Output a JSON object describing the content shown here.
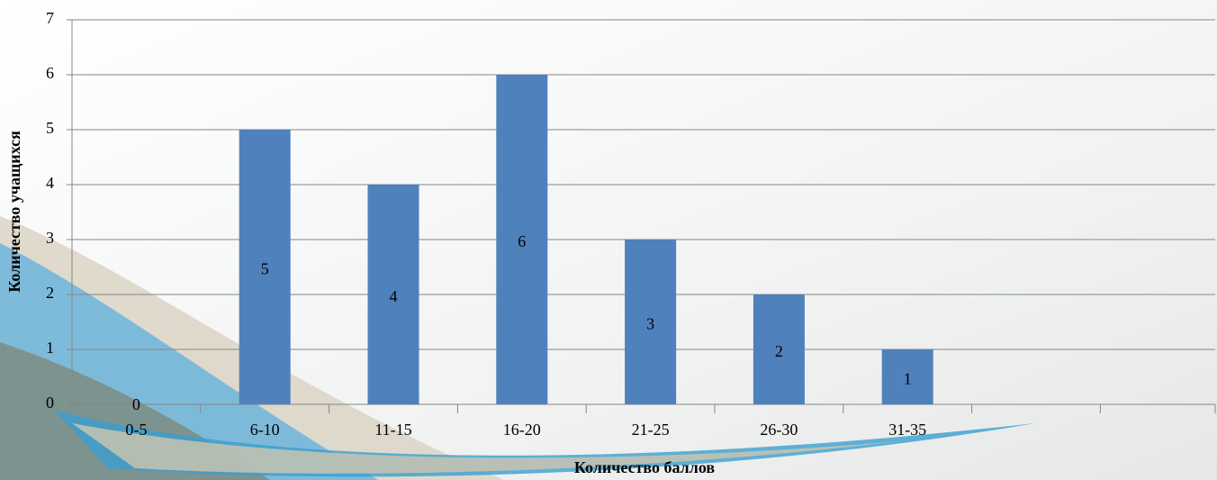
{
  "chart_data": {
    "type": "bar",
    "x_label": "Количество баллов",
    "y_label": "Количество учащихся",
    "categories": [
      "0-5",
      "6-10",
      "11-15",
      "16-20",
      "21-25",
      "26-30",
      "31-35",
      null,
      null
    ],
    "values": [
      0,
      5,
      4,
      6,
      3,
      2,
      1,
      null,
      null
    ],
    "color": "#4f81bd",
    "ylim": [
      0,
      7
    ],
    "yticks": [
      0,
      1,
      2,
      3,
      4,
      5,
      6,
      7
    ],
    "grid": true
  }
}
